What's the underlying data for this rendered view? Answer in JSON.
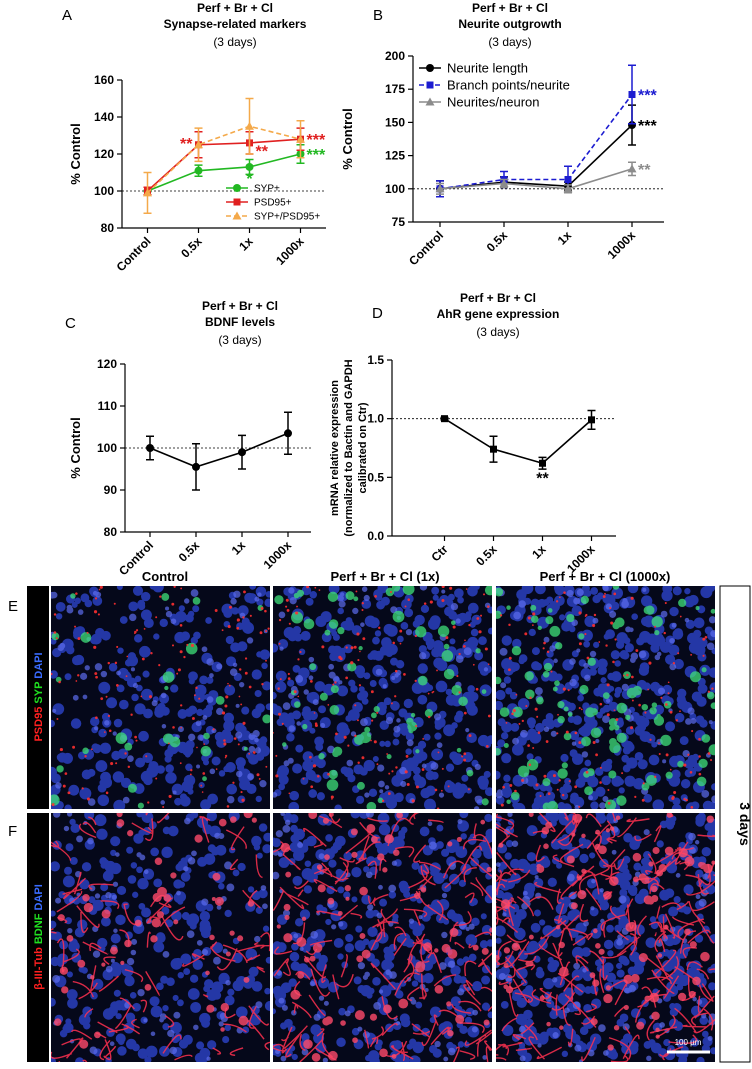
{
  "chart_data": [
    {
      "type": "line",
      "panel": "A",
      "title": [
        "Perf + Br + Cl",
        "Synapse-related markers"
      ],
      "subtitle": "(3 days)",
      "ylabel": [
        "% Control"
      ],
      "categories": [
        "Control",
        "0.5x",
        "1x",
        "1000x"
      ],
      "ylim": [
        80,
        160
      ],
      "yticks": [
        80,
        100,
        120,
        140,
        160
      ],
      "hline": 100,
      "legend": "lower right",
      "series": [
        {
          "name": "SYP+",
          "color": "#22b822",
          "marker": "circle",
          "dashed": false,
          "values": [
            100,
            111,
            113,
            120
          ],
          "errors": [
            2,
            3,
            4,
            5
          ]
        },
        {
          "name": "PSD95+",
          "color": "#e02020",
          "marker": "square",
          "dashed": false,
          "values": [
            100,
            125,
            126,
            128
          ],
          "errors": [
            2,
            7,
            6,
            6
          ]
        },
        {
          "name": "SYP+/PSD95+",
          "color": "#f4a94a",
          "marker": "triangle",
          "dashed": true,
          "values": [
            99,
            125,
            135,
            128
          ],
          "errors": [
            11,
            9,
            15,
            10
          ]
        }
      ],
      "annotations": [
        {
          "text": "**",
          "category": 1,
          "y": 126,
          "color": "#e02020",
          "side": "left"
        },
        {
          "text": "**",
          "category": 2,
          "y": 122,
          "color": "#e02020",
          "side": "right"
        },
        {
          "text": "*",
          "category": 2,
          "y": 107,
          "color": "#22b822",
          "side": "below"
        },
        {
          "text": "***",
          "category": 3,
          "y": 128,
          "color": "#e02020",
          "side": "right"
        },
        {
          "text": "***",
          "category": 3,
          "y": 120,
          "color": "#22b822",
          "side": "right"
        }
      ]
    },
    {
      "type": "line",
      "panel": "B",
      "title": [
        "Perf + Br + Cl",
        "Neurite outgrowth"
      ],
      "subtitle": "(3 days)",
      "ylabel": [
        "% Control"
      ],
      "categories": [
        "Control",
        "0.5x",
        "1x",
        "1000x"
      ],
      "ylim": [
        75,
        200
      ],
      "yticks": [
        75,
        100,
        125,
        150,
        175,
        200
      ],
      "hline": 100,
      "legend": "upper left",
      "series": [
        {
          "name": "Neurite length",
          "color": "#000000",
          "marker": "circle",
          "dashed": false,
          "values": [
            100,
            105,
            102,
            148
          ],
          "errors": [
            6,
            4,
            3,
            15
          ]
        },
        {
          "name": "Branch points/neurite",
          "color": "#1c1cd0",
          "marker": "square",
          "dashed": true,
          "values": [
            100,
            107,
            107,
            171
          ],
          "errors": [
            6,
            6,
            10,
            22
          ]
        },
        {
          "name": "Neurites/neuron",
          "color": "#8c8c8c",
          "marker": "triangle",
          "dashed": false,
          "values": [
            100,
            104,
            100,
            115
          ],
          "errors": [
            4,
            3,
            3,
            5
          ]
        }
      ],
      "annotations": [
        {
          "text": "***",
          "category": 3,
          "y": 171,
          "color": "#1c1cd0",
          "side": "right"
        },
        {
          "text": "***",
          "category": 3,
          "y": 148,
          "color": "#000000",
          "side": "right"
        },
        {
          "text": "**",
          "category": 3,
          "y": 115,
          "color": "#8c8c8c",
          "side": "right"
        }
      ]
    },
    {
      "type": "line",
      "panel": "C",
      "title": [
        "Perf + Br + Cl",
        "BDNF levels"
      ],
      "subtitle": "(3 days)",
      "ylabel": [
        "% Control"
      ],
      "categories": [
        "Control",
        "0.5x",
        "1x",
        "1000x"
      ],
      "ylim": [
        80,
        120
      ],
      "yticks": [
        80,
        90,
        100,
        110,
        120
      ],
      "hline": 100,
      "series": [
        {
          "color": "#000000",
          "marker": "circle",
          "dashed": false,
          "values": [
            100,
            95.5,
            99,
            103.5
          ],
          "errors": [
            2.8,
            5.5,
            4,
            5
          ]
        }
      ],
      "annotations": []
    },
    {
      "type": "line",
      "panel": "D",
      "title": [
        "Perf + Br + Cl",
        "AhR gene expression"
      ],
      "subtitle": "(3 days)",
      "ylabel": [
        "mRNA relative expression",
        "(normalized to Bactin and GAPDH",
        "calibrated on Ctr)"
      ],
      "categories": [
        "Ctr",
        "0.5x",
        "1x",
        "1000x"
      ],
      "ylim": [
        0,
        1.5
      ],
      "yticks": [
        {
          "value": 0,
          "label": "0.0"
        },
        0.5,
        {
          "value": 1,
          "label": "1.0"
        },
        1.5
      ],
      "hline": 1,
      "series": [
        {
          "color": "#000000",
          "marker": "square",
          "dashed": false,
          "values": [
            1.0,
            0.74,
            0.62,
            0.99
          ],
          "errors": [
            0.01,
            0.11,
            0.05,
            0.08
          ]
        }
      ],
      "annotations": [
        {
          "text": "**",
          "category": 2,
          "y": 0.5,
          "color": "#000000",
          "side": "below"
        }
      ]
    }
  ],
  "images": {
    "columns": [
      "Control",
      "Perf + Br + Cl (1x)",
      "Perf + Br + Cl (1000x)"
    ],
    "rows": [
      {
        "letter": "E",
        "stain": [
          "PSD95",
          "SYP",
          "DAPI"
        ]
      },
      {
        "letter": "F",
        "stain": [
          "β-III-Tub",
          "BDNF",
          "DAPI"
        ]
      }
    ],
    "duration": "3 days",
    "scale_bar": "100 µm"
  }
}
